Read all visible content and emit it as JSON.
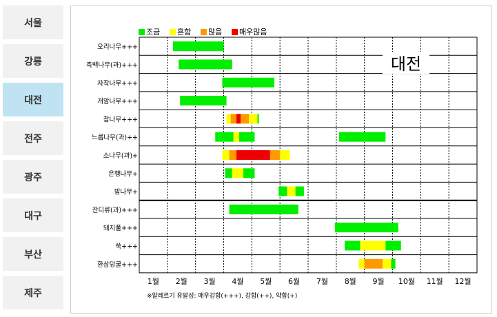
{
  "sidebar": {
    "items": [
      {
        "label": "서울",
        "active": false
      },
      {
        "label": "강릉",
        "active": false
      },
      {
        "label": "대전",
        "active": true
      },
      {
        "label": "전주",
        "active": false
      },
      {
        "label": "광주",
        "active": false
      },
      {
        "label": "대구",
        "active": false
      },
      {
        "label": "부산",
        "active": false
      },
      {
        "label": "제주",
        "active": false
      }
    ]
  },
  "chart_data": {
    "type": "bar",
    "title": "대전",
    "footnote": "※알레르기 유발성: 매우강함(+++), 강함(++), 약함(+)",
    "x_ticks": [
      "1월",
      "2월",
      "3월",
      "4월",
      "5월",
      "6월",
      "7월",
      "8월",
      "9월",
      "10월",
      "11월",
      "12월"
    ],
    "legend": [
      {
        "key": "low",
        "label": "조금",
        "color": "#00ee00"
      },
      {
        "key": "normal",
        "label": "흔함",
        "color": "#ffff00"
      },
      {
        "key": "high",
        "label": "많음",
        "color": "#ff9900"
      },
      {
        "key": "very_high",
        "label": "매우많음",
        "color": "#ee0000"
      }
    ],
    "rows": [
      {
        "label": "오리나무+++",
        "segments": [
          {
            "start": 2.2,
            "end": 4.0,
            "level": "low"
          }
        ]
      },
      {
        "label": "측백나무(과)+++",
        "segments": [
          {
            "start": 2.4,
            "end": 4.3,
            "level": "low"
          }
        ]
      },
      {
        "label": "자작나무+++",
        "segments": [
          {
            "start": 3.95,
            "end": 5.8,
            "level": "low"
          }
        ]
      },
      {
        "label": "개암나무+++",
        "segments": [
          {
            "start": 2.45,
            "end": 4.1,
            "level": "low"
          }
        ]
      },
      {
        "label": "참나무+++",
        "segments": [
          {
            "start": 4.1,
            "end": 4.25,
            "level": "normal"
          },
          {
            "start": 4.25,
            "end": 4.45,
            "level": "high"
          },
          {
            "start": 4.45,
            "end": 4.6,
            "level": "very_high"
          },
          {
            "start": 4.6,
            "end": 4.9,
            "level": "high"
          },
          {
            "start": 4.9,
            "end": 5.2,
            "level": "normal"
          },
          {
            "start": 5.2,
            "end": 5.25,
            "level": "low"
          }
        ]
      },
      {
        "label": "느릅나무(과)++",
        "segments": [
          {
            "start": 3.7,
            "end": 4.35,
            "level": "low"
          },
          {
            "start": 4.35,
            "end": 4.55,
            "level": "normal"
          },
          {
            "start": 4.55,
            "end": 5.1,
            "level": "low"
          },
          {
            "start": 8.1,
            "end": 9.75,
            "level": "low"
          }
        ]
      },
      {
        "label": "소나무(과)+",
        "segments": [
          {
            "start": 3.95,
            "end": 4.2,
            "level": "normal"
          },
          {
            "start": 4.2,
            "end": 4.45,
            "level": "high"
          },
          {
            "start": 4.45,
            "end": 5.65,
            "level": "very_high"
          },
          {
            "start": 5.65,
            "end": 6.0,
            "level": "high"
          },
          {
            "start": 6.0,
            "end": 6.35,
            "level": "normal"
          }
        ]
      },
      {
        "label": "은행나무+",
        "segments": [
          {
            "start": 4.05,
            "end": 4.3,
            "level": "low"
          },
          {
            "start": 4.3,
            "end": 4.7,
            "level": "normal"
          },
          {
            "start": 4.7,
            "end": 5.1,
            "level": "low"
          }
        ]
      },
      {
        "label": "밤나무+",
        "segments": [
          {
            "start": 5.95,
            "end": 6.25,
            "level": "low"
          },
          {
            "start": 6.25,
            "end": 6.55,
            "level": "normal"
          },
          {
            "start": 6.55,
            "end": 6.85,
            "level": "low"
          }
        ]
      },
      {
        "label": "잔디류(과)+++",
        "segments": [
          {
            "start": 4.2,
            "end": 6.65,
            "level": "low"
          }
        ]
      },
      {
        "label": "돼지풀+++",
        "segments": [
          {
            "start": 7.95,
            "end": 10.2,
            "level": "low"
          }
        ]
      },
      {
        "label": "쑥+++",
        "segments": [
          {
            "start": 8.3,
            "end": 8.85,
            "level": "low"
          },
          {
            "start": 8.85,
            "end": 9.75,
            "level": "normal"
          },
          {
            "start": 9.75,
            "end": 10.3,
            "level": "low"
          }
        ]
      },
      {
        "label": "환삼덩굴+++",
        "segments": [
          {
            "start": 8.8,
            "end": 9.0,
            "level": "normal"
          },
          {
            "start": 9.0,
            "end": 9.65,
            "level": "high"
          },
          {
            "start": 9.65,
            "end": 9.95,
            "level": "normal"
          },
          {
            "start": 9.95,
            "end": 10.1,
            "level": "low"
          }
        ]
      }
    ]
  }
}
